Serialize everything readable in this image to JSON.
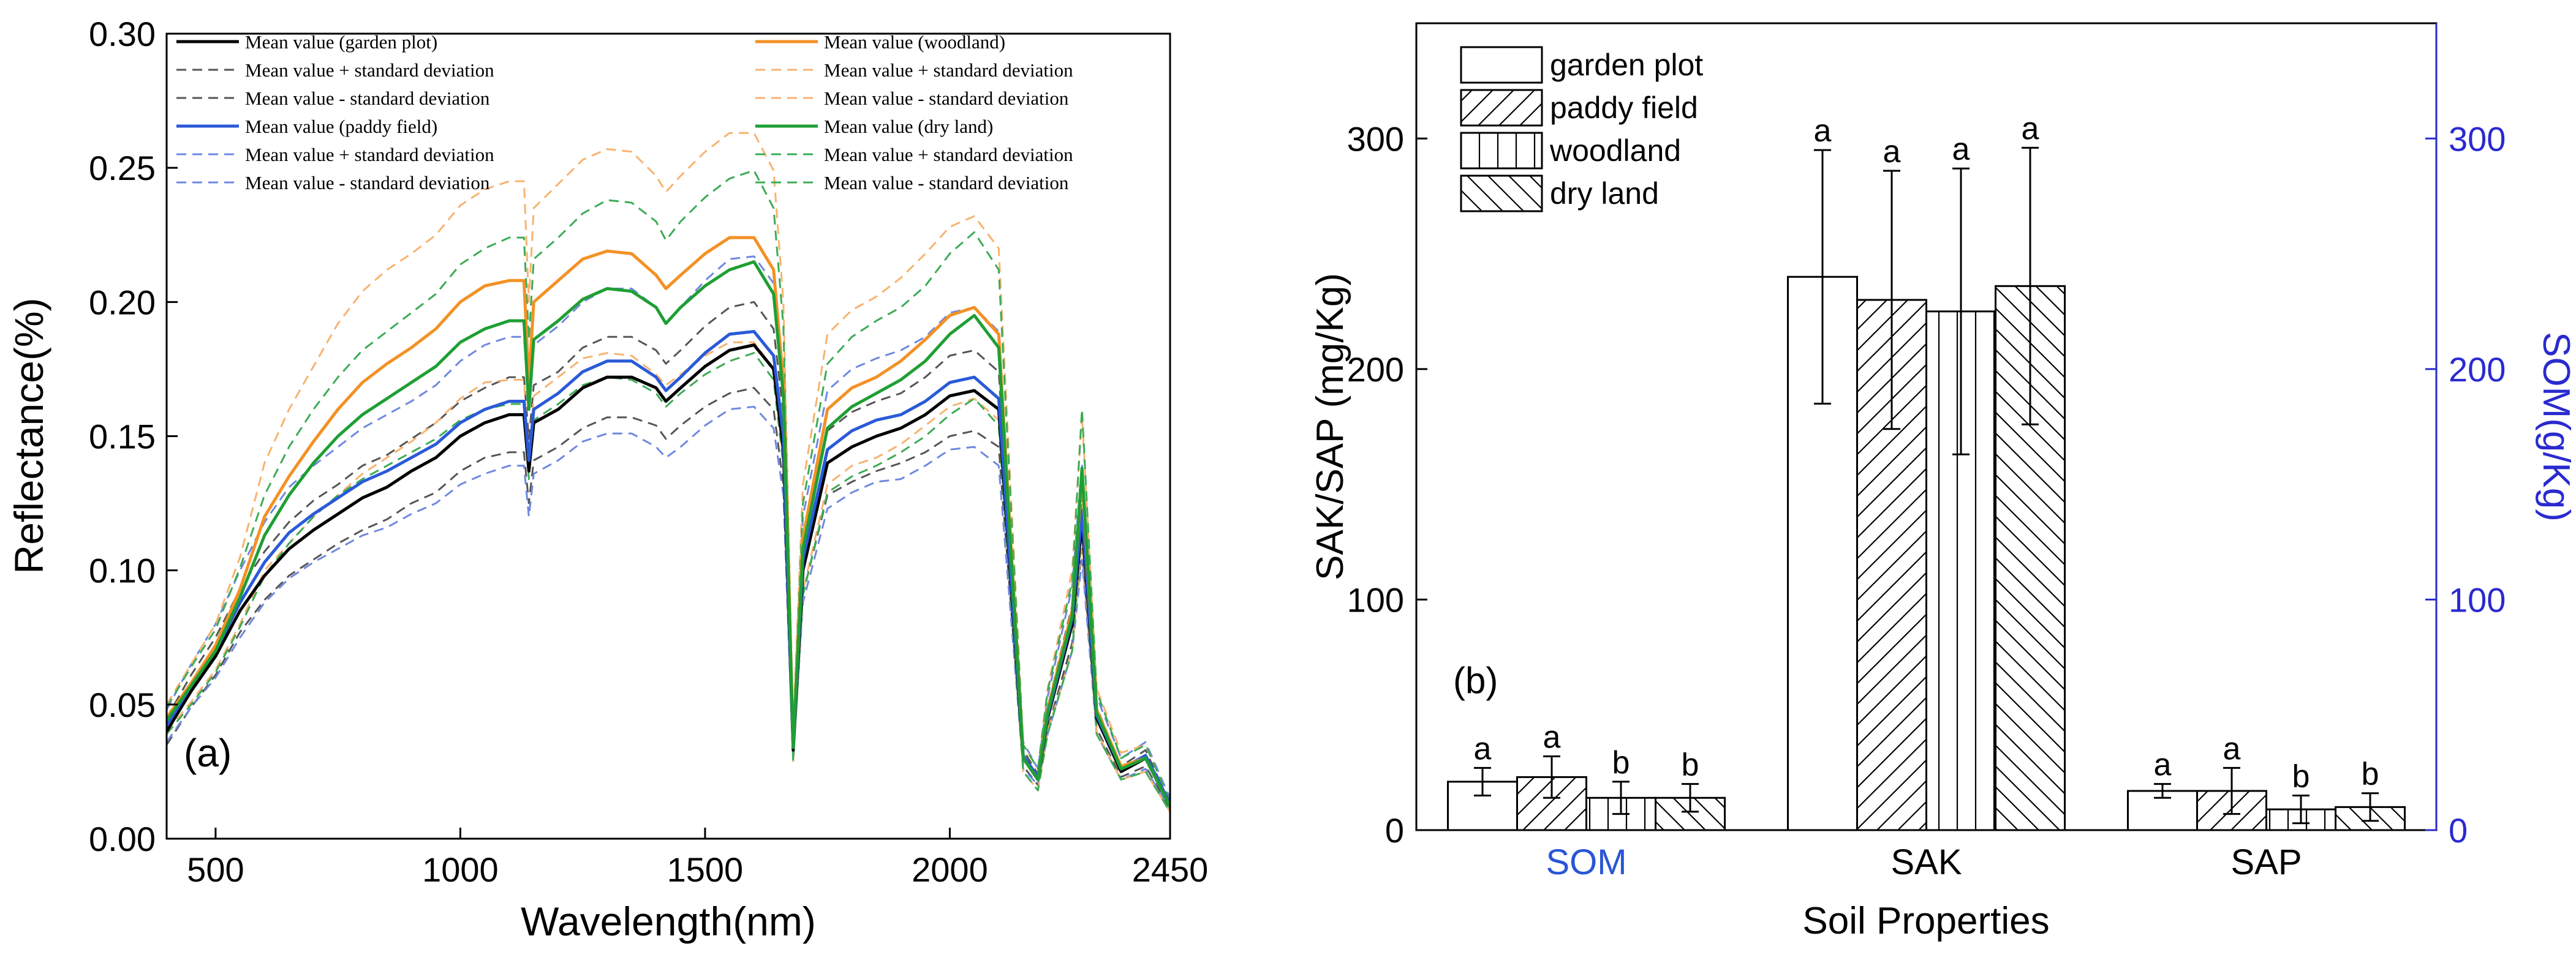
{
  "chart_data": [
    {
      "type": "line",
      "panel_label": "(a)",
      "xlabel": "Wavelength(nm)",
      "ylabel": "Reflectance(%)",
      "xlim": [
        400,
        2450
      ],
      "ylim": [
        0.0,
        0.3
      ],
      "xticks": [
        500,
        1000,
        1500,
        2000,
        2450
      ],
      "yticks": [
        "0.00",
        "0.05",
        "0.10",
        "0.15",
        "0.20",
        "0.25",
        "0.30"
      ],
      "x": [
        400,
        450,
        500,
        550,
        600,
        650,
        700,
        750,
        800,
        850,
        900,
        950,
        1000,
        1050,
        1100,
        1130,
        1140,
        1150,
        1200,
        1250,
        1300,
        1350,
        1400,
        1420,
        1450,
        1500,
        1550,
        1600,
        1640,
        1660,
        1680,
        1700,
        1750,
        1800,
        1850,
        1900,
        1950,
        2000,
        2050,
        2100,
        2150,
        2180,
        2200,
        2250,
        2270,
        2300,
        2350,
        2400,
        2450
      ],
      "legend": [
        {
          "text": "Mean value (garden plot)",
          "color": "#000000",
          "dash": "solid"
        },
        {
          "text": "Mean value + standard deviation",
          "color": "#555555",
          "dash": "dashed"
        },
        {
          "text": "Mean value - standard deviation",
          "color": "#555555",
          "dash": "dashed"
        },
        {
          "text": "Mean value (paddy field)",
          "color": "#2a5ad8",
          "dash": "solid"
        },
        {
          "text": "Mean value + standard deviation",
          "color": "#6f88e0",
          "dash": "dashed"
        },
        {
          "text": "Mean value - standard deviation",
          "color": "#6f88e0",
          "dash": "dashed"
        },
        {
          "text": "Mean value (woodland)",
          "color": "#f39125",
          "dash": "solid"
        },
        {
          "text": "Mean value + standard deviation",
          "color": "#f7b36f",
          "dash": "dashed"
        },
        {
          "text": "Mean value - standard deviation",
          "color": "#f7b36f",
          "dash": "dashed"
        },
        {
          "text": "Mean value (dry land)",
          "color": "#1e9f33",
          "dash": "solid"
        },
        {
          "text": "Mean value + standard deviation",
          "color": "#3cab55",
          "dash": "dashed"
        },
        {
          "text": "Mean value - standard deviation",
          "color": "#3cab55",
          "dash": "dashed"
        }
      ],
      "series": [
        {
          "name": "Mean value (garden plot)",
          "color": "#000000",
          "dash": "solid",
          "width": 5,
          "values": [
            0.04,
            0.055,
            0.068,
            0.085,
            0.098,
            0.108,
            0.115,
            0.121,
            0.127,
            0.131,
            0.137,
            0.142,
            0.15,
            0.155,
            0.158,
            0.158,
            0.137,
            0.155,
            0.16,
            0.168,
            0.172,
            0.172,
            0.168,
            0.163,
            0.168,
            0.176,
            0.182,
            0.184,
            0.175,
            0.145,
            0.033,
            0.1,
            0.14,
            0.146,
            0.15,
            0.153,
            0.158,
            0.165,
            0.167,
            0.16,
            0.03,
            0.022,
            0.045,
            0.08,
            0.118,
            0.045,
            0.025,
            0.03,
            0.012
          ]
        },
        {
          "name": "Mean value (paddy field)",
          "color": "#2a5ad8",
          "dash": "solid",
          "width": 5,
          "values": [
            0.042,
            0.057,
            0.07,
            0.088,
            0.103,
            0.114,
            0.121,
            0.127,
            0.133,
            0.137,
            0.142,
            0.147,
            0.155,
            0.16,
            0.163,
            0.163,
            0.141,
            0.16,
            0.166,
            0.174,
            0.178,
            0.178,
            0.172,
            0.167,
            0.172,
            0.181,
            0.188,
            0.189,
            0.18,
            0.15,
            0.034,
            0.104,
            0.145,
            0.152,
            0.156,
            0.158,
            0.163,
            0.17,
            0.172,
            0.164,
            0.031,
            0.023,
            0.046,
            0.082,
            0.122,
            0.046,
            0.026,
            0.031,
            0.013
          ]
        },
        {
          "name": "Mean value (woodland)",
          "color": "#f39125",
          "dash": "solid",
          "width": 5,
          "values": [
            0.045,
            0.058,
            0.072,
            0.093,
            0.12,
            0.135,
            0.148,
            0.16,
            0.17,
            0.177,
            0.183,
            0.19,
            0.2,
            0.206,
            0.208,
            0.208,
            0.17,
            0.2,
            0.208,
            0.216,
            0.219,
            0.218,
            0.21,
            0.205,
            0.21,
            0.218,
            0.224,
            0.224,
            0.212,
            0.17,
            0.035,
            0.112,
            0.16,
            0.168,
            0.172,
            0.178,
            0.186,
            0.195,
            0.198,
            0.188,
            0.03,
            0.022,
            0.048,
            0.085,
            0.135,
            0.048,
            0.027,
            0.03,
            0.012
          ]
        },
        {
          "name": "Mean value (dry land)",
          "color": "#1e9f33",
          "dash": "solid",
          "width": 5,
          "values": [
            0.044,
            0.057,
            0.07,
            0.09,
            0.113,
            0.128,
            0.14,
            0.15,
            0.158,
            0.164,
            0.17,
            0.176,
            0.185,
            0.19,
            0.193,
            0.193,
            0.16,
            0.186,
            0.193,
            0.201,
            0.205,
            0.204,
            0.198,
            0.192,
            0.198,
            0.206,
            0.212,
            0.215,
            0.203,
            0.165,
            0.034,
            0.108,
            0.153,
            0.161,
            0.166,
            0.171,
            0.178,
            0.188,
            0.195,
            0.183,
            0.03,
            0.022,
            0.047,
            0.083,
            0.138,
            0.047,
            0.026,
            0.03,
            0.012
          ]
        },
        {
          "name": "garden plot + sd",
          "color": "#555555",
          "dash": "dashed",
          "width": 3,
          "values": [
            0.045,
            0.061,
            0.075,
            0.093,
            0.107,
            0.118,
            0.126,
            0.132,
            0.139,
            0.143,
            0.149,
            0.155,
            0.163,
            0.168,
            0.172,
            0.172,
            0.149,
            0.169,
            0.174,
            0.183,
            0.187,
            0.187,
            0.182,
            0.177,
            0.182,
            0.191,
            0.198,
            0.2,
            0.19,
            0.158,
            0.036,
            0.109,
            0.152,
            0.159,
            0.163,
            0.166,
            0.172,
            0.18,
            0.182,
            0.174,
            0.033,
            0.024,
            0.049,
            0.087,
            0.128,
            0.049,
            0.027,
            0.033,
            0.013
          ]
        },
        {
          "name": "garden plot - sd",
          "color": "#555555",
          "dash": "dashed",
          "width": 3,
          "values": [
            0.035,
            0.049,
            0.061,
            0.077,
            0.089,
            0.098,
            0.104,
            0.11,
            0.115,
            0.119,
            0.125,
            0.129,
            0.137,
            0.142,
            0.144,
            0.144,
            0.125,
            0.141,
            0.146,
            0.153,
            0.157,
            0.157,
            0.154,
            0.149,
            0.154,
            0.161,
            0.166,
            0.168,
            0.16,
            0.132,
            0.03,
            0.091,
            0.128,
            0.133,
            0.137,
            0.14,
            0.144,
            0.15,
            0.152,
            0.146,
            0.027,
            0.02,
            0.041,
            0.073,
            0.108,
            0.041,
            0.023,
            0.027,
            0.011
          ]
        },
        {
          "name": "paddy field + sd",
          "color": "#6f88e0",
          "dash": "dashed",
          "width": 3,
          "values": [
            0.048,
            0.065,
            0.08,
            0.1,
            0.118,
            0.131,
            0.139,
            0.146,
            0.153,
            0.158,
            0.163,
            0.169,
            0.178,
            0.184,
            0.187,
            0.187,
            0.162,
            0.184,
            0.191,
            0.2,
            0.205,
            0.205,
            0.198,
            0.192,
            0.198,
            0.208,
            0.216,
            0.217,
            0.207,
            0.173,
            0.039,
            0.12,
            0.167,
            0.175,
            0.179,
            0.182,
            0.187,
            0.196,
            0.198,
            0.189,
            0.036,
            0.026,
            0.053,
            0.094,
            0.14,
            0.053,
            0.03,
            0.036,
            0.015
          ]
        },
        {
          "name": "paddy field - sd",
          "color": "#6f88e0",
          "dash": "dashed",
          "width": 3,
          "values": [
            0.036,
            0.049,
            0.06,
            0.075,
            0.088,
            0.097,
            0.103,
            0.108,
            0.113,
            0.116,
            0.121,
            0.125,
            0.132,
            0.136,
            0.139,
            0.139,
            0.12,
            0.136,
            0.141,
            0.148,
            0.151,
            0.151,
            0.146,
            0.142,
            0.146,
            0.154,
            0.16,
            0.161,
            0.153,
            0.128,
            0.029,
            0.088,
            0.123,
            0.129,
            0.133,
            0.134,
            0.139,
            0.145,
            0.146,
            0.139,
            0.026,
            0.02,
            0.039,
            0.07,
            0.104,
            0.039,
            0.022,
            0.026,
            0.011
          ]
        },
        {
          "name": "woodland + sd",
          "color": "#f7b36f",
          "dash": "dashed",
          "width": 3,
          "values": [
            0.05,
            0.065,
            0.08,
            0.105,
            0.14,
            0.16,
            0.176,
            0.192,
            0.204,
            0.212,
            0.218,
            0.225,
            0.236,
            0.242,
            0.245,
            0.245,
            0.2,
            0.235,
            0.244,
            0.253,
            0.257,
            0.256,
            0.247,
            0.241,
            0.247,
            0.256,
            0.263,
            0.263,
            0.249,
            0.2,
            0.041,
            0.132,
            0.188,
            0.197,
            0.202,
            0.209,
            0.218,
            0.228,
            0.232,
            0.22,
            0.035,
            0.026,
            0.056,
            0.1,
            0.158,
            0.056,
            0.032,
            0.035,
            0.014
          ]
        },
        {
          "name": "woodland - sd",
          "color": "#f7b36f",
          "dash": "dashed",
          "width": 3,
          "values": [
            0.04,
            0.051,
            0.063,
            0.08,
            0.1,
            0.11,
            0.12,
            0.128,
            0.136,
            0.142,
            0.148,
            0.155,
            0.164,
            0.17,
            0.171,
            0.171,
            0.14,
            0.165,
            0.172,
            0.179,
            0.181,
            0.18,
            0.173,
            0.169,
            0.173,
            0.18,
            0.185,
            0.185,
            0.175,
            0.14,
            0.029,
            0.092,
            0.132,
            0.139,
            0.142,
            0.147,
            0.154,
            0.161,
            0.164,
            0.156,
            0.025,
            0.018,
            0.04,
            0.07,
            0.112,
            0.04,
            0.022,
            0.025,
            0.01
          ]
        },
        {
          "name": "dry land + sd",
          "color": "#3cab55",
          "dash": "dashed",
          "width": 3,
          "values": [
            0.049,
            0.064,
            0.078,
            0.101,
            0.128,
            0.146,
            0.16,
            0.172,
            0.182,
            0.189,
            0.196,
            0.203,
            0.214,
            0.22,
            0.224,
            0.224,
            0.186,
            0.216,
            0.224,
            0.233,
            0.238,
            0.237,
            0.23,
            0.223,
            0.23,
            0.239,
            0.246,
            0.249,
            0.235,
            0.191,
            0.039,
            0.125,
            0.177,
            0.187,
            0.193,
            0.198,
            0.206,
            0.218,
            0.226,
            0.212,
            0.035,
            0.026,
            0.055,
            0.096,
            0.16,
            0.055,
            0.03,
            0.035,
            0.014
          ]
        },
        {
          "name": "dry land - sd",
          "color": "#3cab55",
          "dash": "dashed",
          "width": 3,
          "values": [
            0.039,
            0.05,
            0.062,
            0.079,
            0.098,
            0.11,
            0.12,
            0.128,
            0.134,
            0.139,
            0.144,
            0.149,
            0.156,
            0.16,
            0.162,
            0.162,
            0.134,
            0.156,
            0.162,
            0.169,
            0.172,
            0.171,
            0.166,
            0.161,
            0.166,
            0.173,
            0.178,
            0.181,
            0.171,
            0.139,
            0.029,
            0.091,
            0.129,
            0.135,
            0.139,
            0.144,
            0.15,
            0.158,
            0.164,
            0.154,
            0.025,
            0.018,
            0.039,
            0.07,
            0.116,
            0.039,
            0.022,
            0.025,
            0.01
          ]
        }
      ]
    },
    {
      "type": "bar",
      "panel_label": "(b)",
      "xlabel": "Soil Properties",
      "ylabel": "SAK/SAP (mg/Kg)",
      "y2label": "SOM(g/Kg)",
      "ylim": [
        0,
        350
      ],
      "y2lim": [
        0,
        350
      ],
      "yticks": [
        0,
        100,
        200,
        300
      ],
      "y2ticks": [
        0,
        100,
        200,
        300
      ],
      "categories": [
        "SOM",
        "SAK",
        "SAP"
      ],
      "category_colors": [
        "#2a55d6",
        "#000000",
        "#000000"
      ],
      "legend": [
        "garden plot",
        "paddy field",
        "woodland",
        "dry land"
      ],
      "series": [
        {
          "name": "garden plot",
          "pattern": "none",
          "values": [
            21,
            240,
            17
          ],
          "errors": [
            6,
            55,
            3
          ],
          "labels": [
            "a",
            "a",
            "a"
          ]
        },
        {
          "name": "paddy field",
          "pattern": "diagonal-up",
          "values": [
            23,
            230,
            17
          ],
          "errors": [
            9,
            56,
            10
          ],
          "labels": [
            "a",
            "a",
            "a"
          ]
        },
        {
          "name": "woodland",
          "pattern": "vertical",
          "values": [
            14,
            225,
            9
          ],
          "errors": [
            7,
            62,
            6
          ],
          "labels": [
            "b",
            "a",
            "b"
          ]
        },
        {
          "name": "dry land",
          "pattern": "diagonal-down",
          "values": [
            14,
            236,
            10
          ],
          "errors": [
            6,
            60,
            6
          ],
          "labels": [
            "b",
            "a",
            "b"
          ]
        }
      ],
      "colors": {
        "right_axis": "#2a2ad0",
        "som_label": "#2a55d6"
      }
    }
  ]
}
